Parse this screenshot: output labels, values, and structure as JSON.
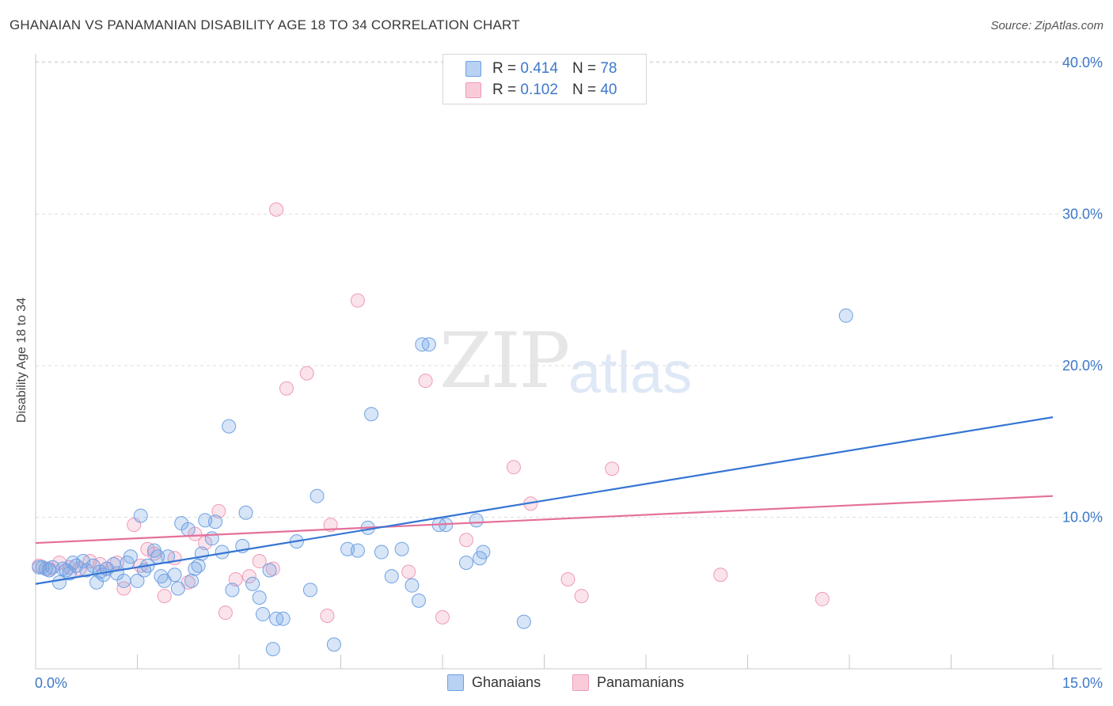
{
  "title": "GHANAIAN VS PANAMANIAN DISABILITY AGE 18 TO 34 CORRELATION CHART",
  "source": "Source: ZipAtlas.com",
  "watermark": {
    "zip": "ZIP",
    "atlas": "atlas"
  },
  "legend": {
    "r_label": "R =",
    "n_label": "N =",
    "ghanaian": {
      "r": "0.414",
      "n": "78"
    },
    "panamanian": {
      "r": "0.102",
      "n": "40"
    }
  },
  "bottom_legend": {
    "ghanaian": "Ghanaians",
    "panamanian": "Panamanians"
  },
  "chart_data": {
    "type": "scatter",
    "title": "GHANAIAN VS PANAMANIAN DISABILITY AGE 18 TO 34 CORRELATION CHART",
    "xlabel": "",
    "ylabel": "Disability Age 18 to 34",
    "xlim": [
      0,
      15
    ],
    "ylim": [
      0,
      42
    ],
    "x_tick_labels": [
      "0.0%",
      "15.0%"
    ],
    "y_ticks": [
      10,
      20,
      30,
      40
    ],
    "y_tick_labels": [
      "10.0%",
      "20.0%",
      "30.0%",
      "40.0%"
    ],
    "colors": {
      "ghanaian": "#6fa1e4",
      "panamanian": "#f09ab6",
      "ghanaian_line": "#3575d3",
      "panamanian_line": "#e4709a",
      "tick_text": "#3d78c9"
    },
    "series": [
      {
        "name": "Ghanaians",
        "trend": {
          "x": [
            0,
            15
          ],
          "y": [
            5.6,
            16.6
          ]
        },
        "points": [
          [
            0.05,
            6.7
          ],
          [
            0.15,
            6.6
          ],
          [
            0.2,
            6.5
          ],
          [
            0.25,
            6.7
          ],
          [
            0.35,
            5.7
          ],
          [
            0.4,
            6.6
          ],
          [
            0.5,
            6.3
          ],
          [
            0.55,
            7.0
          ],
          [
            0.6,
            6.8
          ],
          [
            0.7,
            7.1
          ],
          [
            0.75,
            6.5
          ],
          [
            0.85,
            6.8
          ],
          [
            0.9,
            5.7
          ],
          [
            1.0,
            6.2
          ],
          [
            1.05,
            6.6
          ],
          [
            1.15,
            6.9
          ],
          [
            1.2,
            6.3
          ],
          [
            1.3,
            5.8
          ],
          [
            1.35,
            7.0
          ],
          [
            1.4,
            7.4
          ],
          [
            1.5,
            5.8
          ],
          [
            1.55,
            10.1
          ],
          [
            1.6,
            6.5
          ],
          [
            1.65,
            6.8
          ],
          [
            1.75,
            7.8
          ],
          [
            1.8,
            7.4
          ],
          [
            1.85,
            6.1
          ],
          [
            1.9,
            5.8
          ],
          [
            1.95,
            7.4
          ],
          [
            2.05,
            6.2
          ],
          [
            2.1,
            5.3
          ],
          [
            2.15,
            9.6
          ],
          [
            2.25,
            9.2
          ],
          [
            2.3,
            5.8
          ],
          [
            2.35,
            6.6
          ],
          [
            2.4,
            6.8
          ],
          [
            2.45,
            7.6
          ],
          [
            2.5,
            9.8
          ],
          [
            2.6,
            8.6
          ],
          [
            2.65,
            9.7
          ],
          [
            2.75,
            7.7
          ],
          [
            2.85,
            16.0
          ],
          [
            2.9,
            5.2
          ],
          [
            3.05,
            8.1
          ],
          [
            3.1,
            10.3
          ],
          [
            3.2,
            5.6
          ],
          [
            3.3,
            4.7
          ],
          [
            3.35,
            3.6
          ],
          [
            3.45,
            6.5
          ],
          [
            3.5,
            1.3
          ],
          [
            3.55,
            3.3
          ],
          [
            3.65,
            3.3
          ],
          [
            3.85,
            8.4
          ],
          [
            4.05,
            5.2
          ],
          [
            4.15,
            11.4
          ],
          [
            4.4,
            1.6
          ],
          [
            4.6,
            7.9
          ],
          [
            4.75,
            7.8
          ],
          [
            4.9,
            9.3
          ],
          [
            4.95,
            16.8
          ],
          [
            5.1,
            7.7
          ],
          [
            5.25,
            6.1
          ],
          [
            5.4,
            7.9
          ],
          [
            5.55,
            5.5
          ],
          [
            5.65,
            4.5
          ],
          [
            5.7,
            21.4
          ],
          [
            5.8,
            21.4
          ],
          [
            5.95,
            9.5
          ],
          [
            6.05,
            9.5
          ],
          [
            6.35,
            7.0
          ],
          [
            6.5,
            9.8
          ],
          [
            6.6,
            7.7
          ],
          [
            7.2,
            3.1
          ],
          [
            11.95,
            23.3
          ],
          [
            6.55,
            7.3
          ],
          [
            0.1,
            6.7
          ],
          [
            0.45,
            6.5
          ],
          [
            0.95,
            6.4
          ]
        ]
      },
      {
        "name": "Panamanians",
        "trend": {
          "x": [
            0,
            15
          ],
          "y": [
            8.3,
            11.4
          ]
        },
        "points": [
          [
            0.05,
            6.8
          ],
          [
            0.2,
            6.6
          ],
          [
            0.35,
            7.0
          ],
          [
            0.5,
            6.7
          ],
          [
            0.65,
            6.6
          ],
          [
            0.8,
            7.1
          ],
          [
            0.95,
            6.9
          ],
          [
            1.05,
            6.6
          ],
          [
            1.2,
            7.0
          ],
          [
            1.3,
            5.3
          ],
          [
            1.45,
            9.5
          ],
          [
            1.55,
            6.8
          ],
          [
            1.65,
            7.9
          ],
          [
            1.75,
            7.6
          ],
          [
            1.9,
            4.8
          ],
          [
            2.05,
            7.3
          ],
          [
            2.25,
            5.7
          ],
          [
            2.35,
            8.9
          ],
          [
            2.5,
            8.3
          ],
          [
            2.7,
            10.4
          ],
          [
            2.8,
            3.7
          ],
          [
            2.95,
            5.9
          ],
          [
            3.15,
            6.1
          ],
          [
            3.3,
            7.1
          ],
          [
            3.5,
            6.6
          ],
          [
            3.55,
            30.3
          ],
          [
            3.7,
            18.5
          ],
          [
            4.0,
            19.5
          ],
          [
            4.3,
            3.5
          ],
          [
            4.35,
            9.5
          ],
          [
            4.75,
            24.3
          ],
          [
            5.5,
            6.4
          ],
          [
            5.75,
            19.0
          ],
          [
            6.0,
            3.4
          ],
          [
            6.35,
            8.5
          ],
          [
            7.05,
            13.3
          ],
          [
            7.3,
            10.9
          ],
          [
            7.85,
            5.9
          ],
          [
            8.5,
            13.2
          ],
          [
            10.1,
            6.2
          ]
        ]
      }
    ],
    "extra_panamanian": [
      [
        8.05,
        4.8
      ],
      [
        11.6,
        4.6
      ]
    ]
  }
}
